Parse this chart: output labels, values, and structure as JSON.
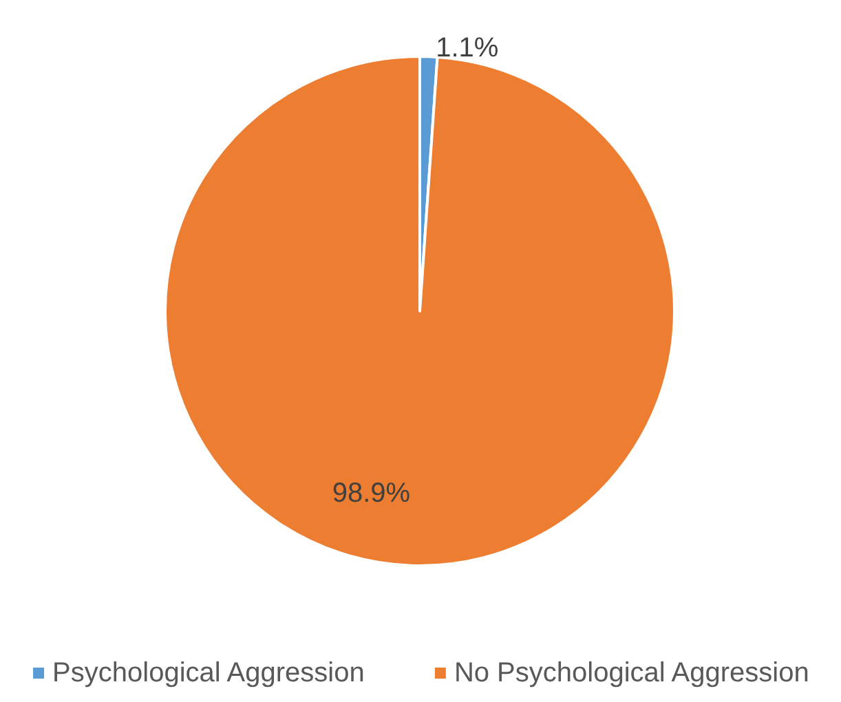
{
  "chart_data": {
    "type": "pie",
    "categories": [
      "Psychological Aggression",
      "No Psychological Aggression"
    ],
    "values": [
      1.1,
      98.9
    ],
    "colors": [
      "#5b9bd5",
      "#ed7d31"
    ],
    "value_labels": [
      "1.1%",
      "98.9%"
    ],
    "legend": "bottom"
  }
}
